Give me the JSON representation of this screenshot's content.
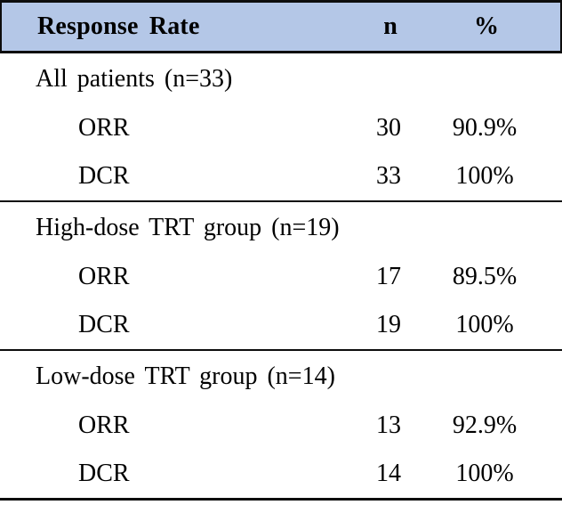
{
  "table": {
    "title": "Response Rate",
    "headers": {
      "col1": "Response Rate",
      "col2": "n",
      "col3": "%"
    },
    "colors": {
      "header_bg": "#b4c7e7",
      "border": "#0d0d0d",
      "text": "#000000"
    },
    "sections": [
      {
        "group": "All patients (n=33)",
        "rows": [
          {
            "label": "ORR",
            "n": "30",
            "pct": "90.9%"
          },
          {
            "label": "DCR",
            "n": "33",
            "pct": "100%"
          }
        ]
      },
      {
        "group": "High-dose TRT group (n=19)",
        "rows": [
          {
            "label": "ORR",
            "n": "17",
            "pct": "89.5%"
          },
          {
            "label": "DCR",
            "n": "19",
            "pct": "100%"
          }
        ]
      },
      {
        "group": "Low-dose TRT group (n=14)",
        "rows": [
          {
            "label": "ORR",
            "n": "13",
            "pct": "92.9%"
          },
          {
            "label": "DCR",
            "n": "14",
            "pct": "100%"
          }
        ]
      }
    ]
  }
}
